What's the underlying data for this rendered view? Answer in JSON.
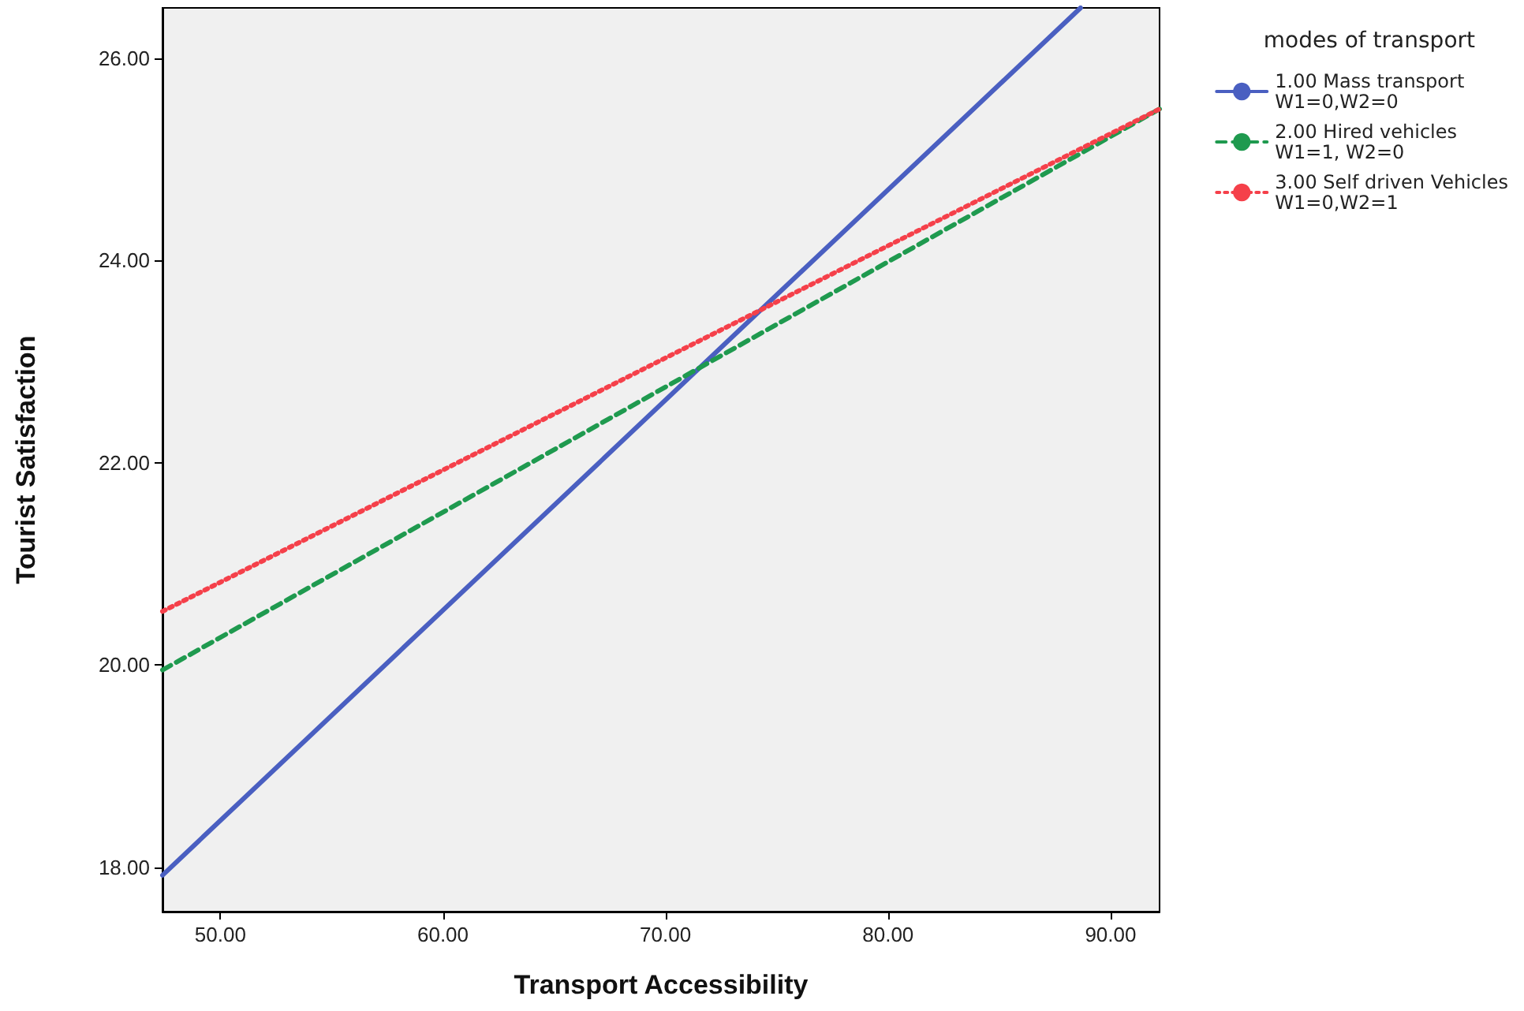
{
  "chart_data": {
    "type": "line",
    "xlabel": "Transport Accessibility",
    "ylabel": "Tourist Satisfaction",
    "legend_title": "modes of transport",
    "series": [
      {
        "name": "1.00 Mass transport\nW1=0,W2=0",
        "color": "#4a5fc1",
        "x": [
          47.4,
          88.65
        ],
        "values": [
          17.92,
          26.5
        ],
        "line_style": "solid"
      },
      {
        "name": "2.00 Hired vehicles\nW1=1, W2=0",
        "color": "#1f9a4f",
        "x": [
          47.4,
          92.2
        ],
        "values": [
          19.95,
          25.5
        ],
        "line_style": "dashed"
      },
      {
        "name": "3.00 Self driven Vehicles\nW1=0,W2=1",
        "color": "#f5404a",
        "x": [
          47.4,
          92.2
        ],
        "values": [
          20.53,
          25.5
        ],
        "line_style": "dotted"
      }
    ],
    "xlim": [
      47.4,
      92.2
    ],
    "ylim": [
      17.56,
      26.5
    ],
    "xticks": [
      {
        "value": 50,
        "label": "50.00"
      },
      {
        "value": 60,
        "label": "60.00"
      },
      {
        "value": 70,
        "label": "70.00"
      },
      {
        "value": 80,
        "label": "80.00"
      },
      {
        "value": 90,
        "label": "90.00"
      }
    ],
    "yticks": [
      {
        "value": 18,
        "label": "18.00"
      },
      {
        "value": 20,
        "label": "20.00"
      },
      {
        "value": 22,
        "label": "22.00"
      },
      {
        "value": 24,
        "label": "24.00"
      },
      {
        "value": 26,
        "label": "26.00"
      }
    ],
    "grid": false,
    "legend": "right",
    "marker": "none"
  }
}
